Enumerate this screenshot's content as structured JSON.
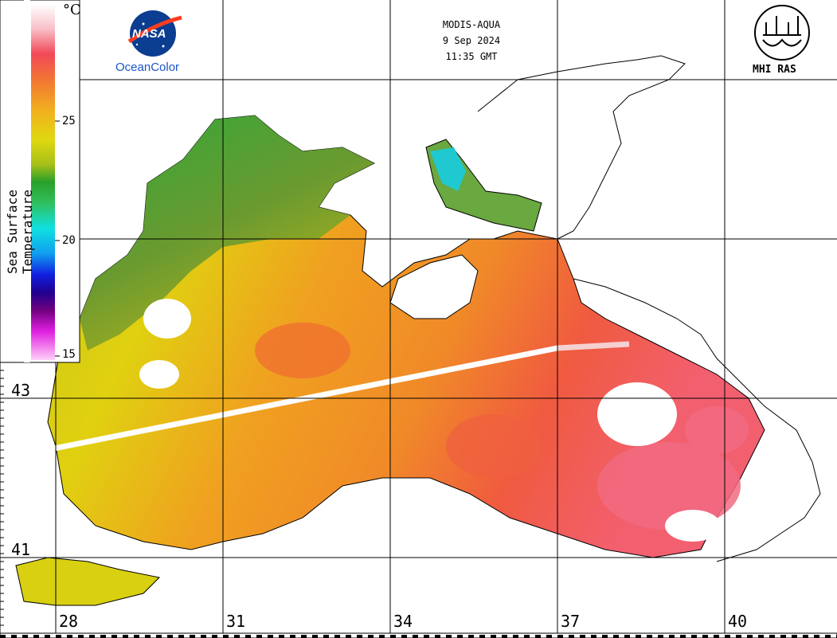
{
  "header": {
    "sensor": "MODIS-AQUA",
    "date": "9 Sep 2024",
    "time": "11:35 GMT"
  },
  "logos": {
    "nasa_text": "NASA",
    "oceancolor_text": "OceanColor",
    "mhi_text": "MHI RAS"
  },
  "colorbar": {
    "title": "Sea Surface Temperature",
    "unit": "°C",
    "ticks": [
      "25",
      "20",
      "15"
    ],
    "range": [
      15,
      30
    ]
  },
  "latitudes": [
    "43",
    "41"
  ],
  "longitudes": [
    "28",
    "31",
    "34",
    "37",
    "40"
  ],
  "colors": {
    "warm": "#f05a3a",
    "hot": "#f2607a",
    "mid": "#f2a020",
    "cool": "#d8d010",
    "green": "#2fa83a",
    "cyan": "#10d8e0"
  }
}
